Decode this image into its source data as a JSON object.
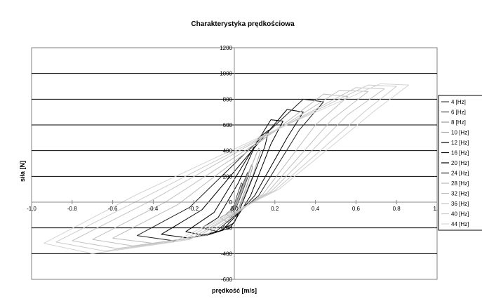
{
  "chart_data": {
    "type": "line",
    "title": "Charakterystyka prędkościowa",
    "xlabel": "prędkość [m/s]",
    "ylabel": "siła [N]",
    "xlim": [
      -1.0,
      1.0
    ],
    "ylim": [
      -600,
      1200
    ],
    "x_ticks": [
      "-1.0",
      "-0.8",
      "-0.6",
      "-0.4",
      "-0.2",
      "0.0",
      "0.2",
      "0.4",
      "0.6",
      "0.8",
      "1.0"
    ],
    "y_ticks": [
      "-600",
      "-400",
      "-200",
      "0",
      "200",
      "400",
      "600",
      "800",
      "1000",
      "1200"
    ],
    "grid": "horizontal major gridlines",
    "legend_position": "right",
    "series": [
      {
        "name": "4 [Hz]",
        "color": "#444444",
        "x": [
          -0.01,
          -0.005,
          0.005,
          0.02,
          0.04,
          0.035,
          0.015,
          0.0,
          -0.01
        ],
        "y": [
          -40,
          -60,
          -30,
          40,
          140,
          150,
          60,
          -20,
          -40
        ]
      },
      {
        "name": "6 [Hz]",
        "color": "#444444",
        "x": [
          -0.02,
          -0.01,
          0.01,
          0.04,
          0.07,
          0.065,
          0.035,
          0.005,
          -0.02
        ],
        "y": [
          -60,
          -85,
          -40,
          80,
          210,
          230,
          110,
          -20,
          -60
        ]
      },
      {
        "name": "8 [Hz]",
        "color": "#999999",
        "x": [
          -0.04,
          -0.02,
          0.02,
          0.06,
          0.09,
          0.085,
          0.05,
          0.0,
          -0.04
        ],
        "y": [
          -90,
          -120,
          -50,
          120,
          270,
          290,
          150,
          -40,
          -90
        ]
      },
      {
        "name": "10 [Hz]",
        "color": "#aaaaaa",
        "x": [
          -0.07,
          -0.03,
          0.02,
          0.09,
          0.13,
          0.12,
          0.07,
          0.0,
          -0.07
        ],
        "y": [
          -120,
          -160,
          -60,
          200,
          400,
          420,
          220,
          -60,
          -120
        ]
      },
      {
        "name": "12 [Hz]",
        "color": "#000000",
        "x": [
          -0.16,
          -0.08,
          0.0,
          0.08,
          0.15,
          0.17,
          0.12,
          0.02,
          -0.08,
          -0.16
        ],
        "y": [
          -200,
          -230,
          -160,
          150,
          430,
          560,
          500,
          150,
          -120,
          -200
        ]
      },
      {
        "name": "16 [Hz]",
        "color": "#000000",
        "x": [
          -0.24,
          -0.14,
          -0.02,
          0.08,
          0.18,
          0.24,
          0.18,
          0.04,
          -0.1,
          -0.24
        ],
        "y": [
          -230,
          -260,
          -200,
          50,
          450,
          630,
          640,
          280,
          -80,
          -230
        ]
      },
      {
        "name": "20 [Hz]",
        "color": "#000000",
        "x": [
          -0.36,
          -0.22,
          -0.06,
          0.1,
          0.26,
          0.34,
          0.26,
          0.06,
          -0.16,
          -0.36
        ],
        "y": [
          -250,
          -280,
          -220,
          50,
          500,
          700,
          720,
          350,
          -60,
          -250
        ]
      },
      {
        "name": "24 [Hz]",
        "color": "#222222",
        "x": [
          -0.48,
          -0.3,
          -0.1,
          0.12,
          0.32,
          0.44,
          0.34,
          0.08,
          -0.22,
          -0.48
        ],
        "y": [
          -260,
          -300,
          -240,
          50,
          560,
          780,
          800,
          420,
          -40,
          -260
        ]
      },
      {
        "name": "28 [Hz]",
        "color": "#bbbbbb",
        "x": [
          -0.6,
          -0.4,
          -0.14,
          0.14,
          0.4,
          0.56,
          0.44,
          0.12,
          -0.28,
          -0.6
        ],
        "y": [
          -280,
          -320,
          -260,
          60,
          600,
          820,
          840,
          460,
          -20,
          -280
        ]
      },
      {
        "name": "32 [Hz]",
        "color": "#c0c0c0",
        "x": [
          -0.7,
          -0.5,
          -0.18,
          0.16,
          0.48,
          0.66,
          0.52,
          0.14,
          -0.34,
          -0.7
        ],
        "y": [
          -290,
          -340,
          -270,
          70,
          640,
          860,
          870,
          490,
          0,
          -290
        ]
      },
      {
        "name": "36 [Hz]",
        "color": "#c4c4c4",
        "x": [
          -0.8,
          -0.58,
          -0.22,
          0.18,
          0.56,
          0.74,
          0.6,
          0.16,
          -0.4,
          -0.8
        ],
        "y": [
          -300,
          -360,
          -290,
          80,
          680,
          880,
          890,
          520,
          20,
          -300
        ]
      },
      {
        "name": "40 [Hz]",
        "color": "#cccccc",
        "x": [
          -0.88,
          -0.64,
          -0.26,
          0.2,
          0.64,
          0.8,
          0.66,
          0.18,
          -0.44,
          -0.88
        ],
        "y": [
          -310,
          -380,
          -300,
          90,
          700,
          900,
          910,
          540,
          40,
          -310
        ]
      },
      {
        "name": "44 [Hz]",
        "color": "#d4d4d4",
        "x": [
          -0.94,
          -0.7,
          -0.3,
          0.22,
          0.7,
          0.86,
          0.72,
          0.2,
          -0.48,
          -0.94
        ],
        "y": [
          -320,
          -400,
          -310,
          100,
          720,
          910,
          920,
          560,
          60,
          -320
        ]
      }
    ]
  }
}
